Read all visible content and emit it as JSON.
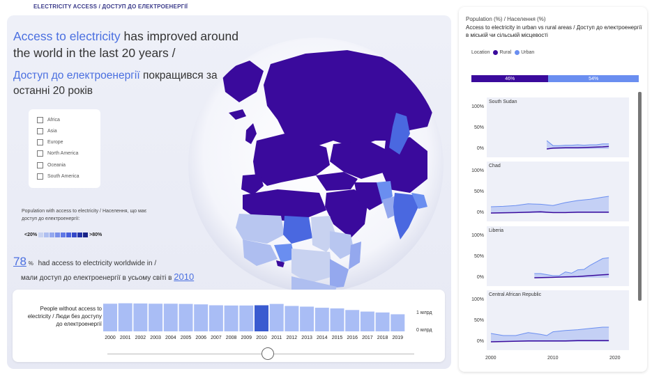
{
  "header": {
    "title": "ELECTRICITY ACCESS / ДОСТУП ДО ЕЛЕКТРОЕНЕРГІЇ"
  },
  "headline": {
    "highlight_en": "Access to electricity",
    "rest_en": " has improved around the world in the last 20 years /",
    "highlight_uk": "Доступ до електроенергії",
    "rest_uk": " покращився за останні 20 років"
  },
  "continents": [
    "Africa",
    "Asia",
    "Europe",
    "North America",
    "Oceania",
    "South America"
  ],
  "map_legend": {
    "title": "Population with access to electricity / Населення, що має доступ до електроенергії:",
    "low": "<20%",
    "high": ">80%",
    "swatches": [
      "#c8d2f0",
      "#aebef0",
      "#94a8ee",
      "#7a90ea",
      "#6078e6",
      "#4860dc",
      "#3448c8",
      "#2434a8",
      "#1a2488"
    ]
  },
  "stat": {
    "percent": "78",
    "percent_sign": "%",
    "text_en": "had access to electricity worldwide in /",
    "text_uk": "мали доступ до електроенергії в усьому світі в",
    "year": "2010"
  },
  "bar_section": {
    "title": "People without access to electricity / Люди без доступу до електроенергії",
    "label_top": "1 млрд",
    "label_bottom": "0 млрд"
  },
  "chart_data": [
    {
      "type": "bar",
      "title": "People without access to electricity / Люди без доступу до електроенергії",
      "categories": [
        "2000",
        "2001",
        "2002",
        "2003",
        "2004",
        "2005",
        "2006",
        "2007",
        "2008",
        "2009",
        "2010",
        "2011",
        "2012",
        "2013",
        "2014",
        "2015",
        "2016",
        "2017",
        "2018",
        "2019"
      ],
      "values": [
        1.23,
        1.25,
        1.24,
        1.23,
        1.23,
        1.22,
        1.2,
        1.16,
        1.15,
        1.15,
        1.16,
        1.22,
        1.13,
        1.1,
        1.05,
        1.02,
        0.95,
        0.88,
        0.84,
        0.76
      ],
      "ylabel": "млрд",
      "ylim": [
        0,
        1.3
      ],
      "selected": "2010",
      "colors": {
        "bar": "#a9bdf5",
        "selected": "#3a5bd0"
      }
    },
    {
      "type": "bar",
      "title": "Population (%) / Населення (%)",
      "series": [
        {
          "name": "Rural",
          "values": [
            46
          ]
        },
        {
          "name": "Urban",
          "values": [
            54
          ]
        }
      ],
      "colors": {
        "Rural": "#3a0a9c",
        "Urban": "#6a8ef0"
      }
    },
    {
      "type": "area",
      "title": "Access to electricity in urban vs rural areas / Доступ до електроенергії в міській чи сільській місцевості",
      "ylim": [
        0,
        100
      ],
      "xlim": [
        2000,
        2020
      ],
      "panels": [
        {
          "name": "South Sudan",
          "urban": [
            [
              2009,
              20
            ],
            [
              2010,
              8
            ],
            [
              2011,
              8
            ],
            [
              2012,
              9
            ],
            [
              2013,
              9
            ],
            [
              2014,
              10
            ],
            [
              2015,
              9
            ],
            [
              2016,
              10
            ],
            [
              2017,
              10
            ],
            [
              2018,
              12
            ],
            [
              2019,
              12
            ]
          ],
          "rural": [
            [
              2009,
              0
            ],
            [
              2010,
              2
            ],
            [
              2012,
              3
            ],
            [
              2014,
              3
            ],
            [
              2016,
              4
            ],
            [
              2018,
              5
            ],
            [
              2019,
              6
            ]
          ]
        },
        {
          "name": "Chad",
          "urban": [
            [
              2000,
              15
            ],
            [
              2002,
              16
            ],
            [
              2004,
              18
            ],
            [
              2006,
              22
            ],
            [
              2008,
              21
            ],
            [
              2010,
              18
            ],
            [
              2012,
              25
            ],
            [
              2014,
              30
            ],
            [
              2016,
              33
            ],
            [
              2018,
              38
            ],
            [
              2019,
              40
            ]
          ],
          "rural": [
            [
              2000,
              0
            ],
            [
              2004,
              1
            ],
            [
              2008,
              3
            ],
            [
              2010,
              1
            ],
            [
              2012,
              1
            ],
            [
              2014,
              2
            ],
            [
              2016,
              2
            ],
            [
              2018,
              2
            ],
            [
              2019,
              2
            ]
          ]
        },
        {
          "name": "Liberia",
          "urban": [
            [
              2007,
              10
            ],
            [
              2008,
              10
            ],
            [
              2010,
              5
            ],
            [
              2011,
              5
            ],
            [
              2012,
              14
            ],
            [
              2013,
              11
            ],
            [
              2014,
              19
            ],
            [
              2015,
              20
            ],
            [
              2016,
              30
            ],
            [
              2017,
              38
            ],
            [
              2018,
              46
            ],
            [
              2019,
              48
            ]
          ],
          "rural": [
            [
              2007,
              0
            ],
            [
              2010,
              1
            ],
            [
              2012,
              2
            ],
            [
              2014,
              3
            ],
            [
              2016,
              5
            ],
            [
              2018,
              7
            ],
            [
              2019,
              8
            ]
          ]
        },
        {
          "name": "Central African Republic",
          "urban": [
            [
              2000,
              20
            ],
            [
              2002,
              15
            ],
            [
              2004,
              15
            ],
            [
              2006,
              22
            ],
            [
              2008,
              18
            ],
            [
              2009,
              15
            ],
            [
              2010,
              24
            ],
            [
              2012,
              27
            ],
            [
              2014,
              29
            ],
            [
              2016,
              32
            ],
            [
              2018,
              35
            ],
            [
              2019,
              35
            ]
          ],
          "rural": [
            [
              2000,
              0
            ],
            [
              2006,
              2
            ],
            [
              2008,
              2
            ],
            [
              2010,
              2
            ],
            [
              2012,
              2
            ],
            [
              2014,
              3
            ],
            [
              2016,
              3
            ],
            [
              2018,
              3
            ],
            [
              2019,
              3
            ]
          ]
        }
      ],
      "colors": {
        "urban_fill": "#c4d0f5",
        "urban_line": "#6a8ef0",
        "rural_line": "#3a0a9c"
      }
    }
  ],
  "right_panel": {
    "title": "Population (%) / Населення (%)",
    "subtitle": "Access to electricity in urban vs rural areas / Доступ до електроенергії в міській чи сільській місцевості",
    "location_label": "Location",
    "rural_label": "Rural",
    "urban_label": "Urban",
    "rural_pct": "46%",
    "urban_pct": "54%",
    "y_ticks": [
      "100%",
      "50%",
      "0%"
    ],
    "x_ticks": [
      "2000",
      "2010",
      "2020"
    ]
  }
}
